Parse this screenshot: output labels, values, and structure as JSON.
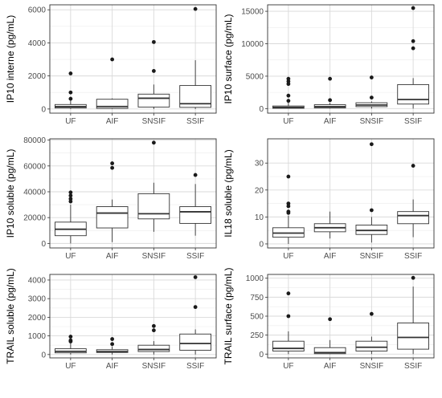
{
  "chart_data": [
    {
      "type": "boxplot",
      "ylabel": "IP10 interne (pg/mL)",
      "ylim": [
        -250,
        6300
      ],
      "yticks": [
        0,
        2000,
        4000,
        6000
      ],
      "categories": [
        "UF",
        "AIF",
        "SNSIF",
        "SSIF"
      ],
      "boxes": [
        {
          "category": "UF",
          "whisker_low": 0,
          "q1": 60,
          "median": 140,
          "q3": 270,
          "whisker_high": 550,
          "outliers": [
            620,
            1000,
            2150
          ]
        },
        {
          "category": "AIF",
          "whisker_low": 0,
          "q1": 40,
          "median": 150,
          "q3": 590,
          "whisker_high": 640,
          "outliers": [
            3000
          ]
        },
        {
          "category": "SNSIF",
          "whisker_low": 0,
          "q1": 120,
          "median": 650,
          "q3": 900,
          "whisker_high": 1480,
          "outliers": [
            2300,
            4050
          ]
        },
        {
          "category": "SSIF",
          "whisker_low": 0,
          "q1": 100,
          "median": 320,
          "q3": 1420,
          "whisker_high": 2950,
          "outliers": [
            6050
          ]
        }
      ],
      "grid": true
    },
    {
      "type": "boxplot",
      "ylabel": "IP10 surface (pg/mL)",
      "ylim": [
        -700,
        16000
      ],
      "yticks": [
        0,
        5000,
        10000,
        15000
      ],
      "categories": [
        "UF",
        "AIF",
        "SNSIF",
        "SSIF"
      ],
      "boxes": [
        {
          "category": "UF",
          "whisker_low": 0,
          "q1": 50,
          "median": 200,
          "q3": 400,
          "whisker_high": 900,
          "outliers": [
            1200,
            2000,
            3800,
            4200,
            4600
          ]
        },
        {
          "category": "AIF",
          "whisker_low": 0,
          "q1": 100,
          "median": 300,
          "q3": 600,
          "whisker_high": 900,
          "outliers": [
            1300,
            4600
          ]
        },
        {
          "category": "SNSIF",
          "whisker_low": 0,
          "q1": 300,
          "median": 550,
          "q3": 900,
          "whisker_high": 1100,
          "outliers": [
            1700,
            4800
          ]
        },
        {
          "category": "SSIF",
          "whisker_low": 0,
          "q1": 700,
          "median": 1400,
          "q3": 3700,
          "whisker_high": 4700,
          "outliers": [
            9300,
            10400,
            15500
          ]
        }
      ],
      "grid": true
    },
    {
      "type": "boxplot",
      "ylabel": "IP10 soluble (pg/mL)",
      "ylim": [
        -3500,
        81000
      ],
      "yticks": [
        0,
        20000,
        40000,
        60000,
        80000
      ],
      "categories": [
        "UF",
        "AIF",
        "SNSIF",
        "SSIF"
      ],
      "boxes": [
        {
          "category": "UF",
          "whisker_low": 0,
          "q1": 6000,
          "median": 11000,
          "q3": 16500,
          "whisker_high": 30000,
          "outliers": [
            32500,
            34500,
            37000,
            39500
          ]
        },
        {
          "category": "AIF",
          "whisker_low": 1000,
          "q1": 12000,
          "median": 23500,
          "q3": 28500,
          "whisker_high": 34000,
          "outliers": [
            58500,
            62000
          ]
        },
        {
          "category": "SNSIF",
          "whisker_low": 9000,
          "q1": 19000,
          "median": 23000,
          "q3": 38500,
          "whisker_high": 47000,
          "outliers": [
            78000
          ]
        },
        {
          "category": "SSIF",
          "whisker_low": 6000,
          "q1": 15500,
          "median": 24500,
          "q3": 28500,
          "whisker_high": 46000,
          "outliers": [
            53000
          ]
        }
      ],
      "grid": true
    },
    {
      "type": "boxplot",
      "ylabel": "IL18 soluble (pg/mL)",
      "ylim": [
        -1.5,
        39
      ],
      "yticks": [
        0,
        10,
        20,
        30
      ],
      "categories": [
        "UF",
        "AIF",
        "SNSIF",
        "SSIF"
      ],
      "boxes": [
        {
          "category": "UF",
          "whisker_low": 0,
          "q1": 2.5,
          "median": 4,
          "q3": 6,
          "whisker_high": 10.5,
          "outliers": [
            11.5,
            12,
            14,
            15,
            25
          ]
        },
        {
          "category": "AIF",
          "whisker_low": 2,
          "q1": 4.5,
          "median": 6,
          "q3": 7.5,
          "whisker_high": 12,
          "outliers": []
        },
        {
          "category": "SNSIF",
          "whisker_low": 0.5,
          "q1": 3.5,
          "median": 5,
          "q3": 7,
          "whisker_high": 10,
          "outliers": [
            12.5,
            37
          ]
        },
        {
          "category": "SSIF",
          "whisker_low": 2.5,
          "q1": 7.5,
          "median": 10.5,
          "q3": 12,
          "whisker_high": 16.5,
          "outliers": [
            29
          ]
        }
      ],
      "grid": true
    },
    {
      "type": "boxplot",
      "ylabel": "TRAIL soluble (pg/mL)",
      "ylim": [
        -180,
        4300
      ],
      "yticks": [
        0,
        1000,
        2000,
        3000,
        4000
      ],
      "categories": [
        "UF",
        "AIF",
        "SNSIF",
        "SSIF"
      ],
      "boxes": [
        {
          "category": "UF",
          "whisker_low": 0,
          "q1": 90,
          "median": 170,
          "q3": 310,
          "whisker_high": 600,
          "outliers": [
            700,
            760,
            960
          ]
        },
        {
          "category": "AIF",
          "whisker_low": 0,
          "q1": 110,
          "median": 160,
          "q3": 260,
          "whisker_high": 430,
          "outliers": [
            560,
            830
          ]
        },
        {
          "category": "SNSIF",
          "whisker_low": 0,
          "q1": 160,
          "median": 270,
          "q3": 500,
          "whisker_high": 720,
          "outliers": [
            1300,
            1530
          ]
        },
        {
          "category": "SSIF",
          "whisker_low": 0,
          "q1": 230,
          "median": 590,
          "q3": 1100,
          "whisker_high": 1350,
          "outliers": [
            2550,
            4150
          ]
        }
      ],
      "grid": true
    },
    {
      "type": "boxplot",
      "ylabel": "TRAIL surface (pg/mL)",
      "ylim": [
        -50,
        1050
      ],
      "yticks": [
        0,
        250,
        500,
        750,
        1000
      ],
      "categories": [
        "UF",
        "AIF",
        "SNSIF",
        "SSIF"
      ],
      "boxes": [
        {
          "category": "UF",
          "whisker_low": 0,
          "q1": 40,
          "median": 75,
          "q3": 170,
          "whisker_high": 300,
          "outliers": [
            500,
            800
          ]
        },
        {
          "category": "AIF",
          "whisker_low": 0,
          "q1": 5,
          "median": 20,
          "q3": 85,
          "whisker_high": 185,
          "outliers": [
            460
          ]
        },
        {
          "category": "SNSIF",
          "whisker_low": 0,
          "q1": 40,
          "median": 90,
          "q3": 170,
          "whisker_high": 230,
          "outliers": [
            530
          ]
        },
        {
          "category": "SSIF",
          "whisker_low": 0,
          "q1": 65,
          "median": 220,
          "q3": 410,
          "whisker_high": 890,
          "outliers": [
            1005
          ]
        }
      ],
      "grid": true
    }
  ],
  "colors": {
    "panel_border": "#333333",
    "grid_major": "#d9d9d9",
    "grid_minor": "#ececec",
    "box_fill": "#ffffff",
    "box_line": "#333333",
    "outlier": "#1a1a1a",
    "text": "#4d4d4d",
    "axis_title": "#000000"
  }
}
